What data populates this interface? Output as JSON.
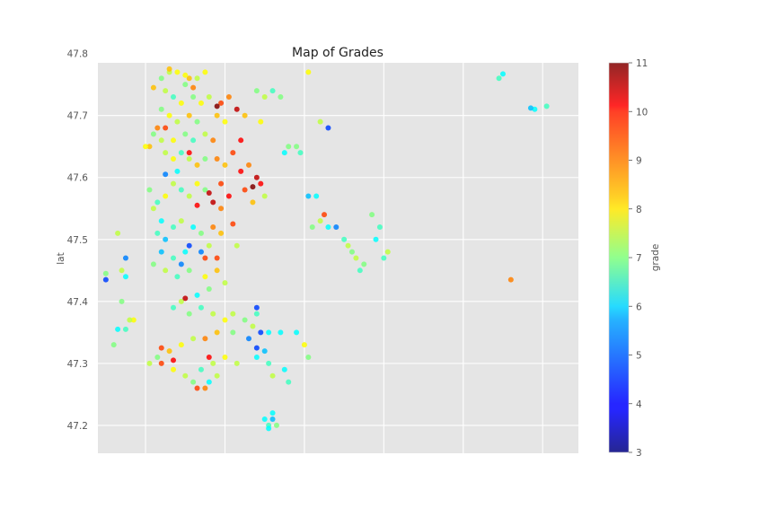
{
  "chart_data": {
    "type": "scatter",
    "title": "Map of Grades",
    "xlabel": "",
    "ylabel": "lat",
    "colorbar_label": "grade",
    "colormap": "jet",
    "xlim": [
      -122.52,
      -121.31
    ],
    "ylim": [
      47.155,
      47.785
    ],
    "yticks": [
      47.2,
      47.3,
      47.4,
      47.5,
      47.6,
      47.7,
      47.8
    ],
    "ytick_labels": [
      "47.2",
      "47.3",
      "47.4",
      "47.5",
      "47.6",
      "47.7",
      "47.8"
    ],
    "xticks_gridlines": [
      -122.4,
      -122.2,
      -122.0,
      -121.8,
      -121.6,
      -121.4
    ],
    "xtick_labels_visible": false,
    "clim": [
      3,
      11
    ],
    "colorbar_ticks": [
      3,
      4,
      5,
      6,
      7,
      8,
      9,
      10,
      11
    ],
    "colorbar_tick_labels": [
      "3",
      "4",
      "5",
      "6",
      "7",
      "8",
      "9",
      "10",
      "11"
    ],
    "grid": true,
    "background": "#e5e5e5",
    "point_alpha": 0.85,
    "series": [
      {
        "points": [
          [
            -122.34,
            47.77,
            7.5
          ],
          [
            -122.32,
            47.77,
            8.0
          ],
          [
            -122.36,
            47.76,
            7.0
          ],
          [
            -122.29,
            47.76,
            8.5
          ],
          [
            -122.3,
            47.75,
            7.0
          ],
          [
            -122.27,
            47.76,
            7.5
          ],
          [
            -122.25,
            47.77,
            8.0
          ],
          [
            -122.35,
            47.74,
            7.5
          ],
          [
            -122.33,
            47.73,
            6.5
          ],
          [
            -122.31,
            47.72,
            8.0
          ],
          [
            -122.28,
            47.73,
            7.0
          ],
          [
            -122.26,
            47.72,
            8.0
          ],
          [
            -122.24,
            47.73,
            7.5
          ],
          [
            -122.36,
            47.71,
            7.0
          ],
          [
            -122.34,
            47.7,
            8.0
          ],
          [
            -122.32,
            47.69,
            7.5
          ],
          [
            -122.29,
            47.7,
            8.5
          ],
          [
            -122.27,
            47.69,
            7.0
          ],
          [
            -122.37,
            47.68,
            9.0
          ],
          [
            -122.38,
            47.67,
            7.0
          ],
          [
            -122.39,
            47.65,
            8.5
          ],
          [
            -122.36,
            47.66,
            7.5
          ],
          [
            -122.33,
            47.66,
            8.0
          ],
          [
            -122.3,
            47.67,
            7.0
          ],
          [
            -122.28,
            47.66,
            6.5
          ],
          [
            -122.25,
            47.67,
            7.5
          ],
          [
            -122.23,
            47.66,
            9.0
          ],
          [
            -122.22,
            47.7,
            8.5
          ],
          [
            -122.21,
            47.72,
            9.5
          ],
          [
            -122.2,
            47.69,
            8.0
          ],
          [
            -122.19,
            47.73,
            9.0
          ],
          [
            -122.17,
            47.71,
            10.5
          ],
          [
            -122.15,
            47.7,
            8.5
          ],
          [
            -122.12,
            47.74,
            7.0
          ],
          [
            -122.1,
            47.73,
            7.5
          ],
          [
            -122.11,
            47.69,
            8.0
          ],
          [
            -122.35,
            47.64,
            7.5
          ],
          [
            -122.33,
            47.63,
            8.0
          ],
          [
            -122.31,
            47.64,
            6.5
          ],
          [
            -122.29,
            47.63,
            7.5
          ],
          [
            -122.27,
            47.62,
            8.5
          ],
          [
            -122.25,
            47.63,
            7.0
          ],
          [
            -122.22,
            47.63,
            9.0
          ],
          [
            -122.2,
            47.62,
            8.5
          ],
          [
            -122.18,
            47.64,
            9.5
          ],
          [
            -122.16,
            47.61,
            10.0
          ],
          [
            -122.14,
            47.62,
            9.0
          ],
          [
            -122.15,
            47.58,
            9.5
          ],
          [
            -122.12,
            47.6,
            10.5
          ],
          [
            -122.11,
            47.59,
            10.0
          ],
          [
            -122.13,
            47.56,
            8.5
          ],
          [
            -122.1,
            47.57,
            7.5
          ],
          [
            -122.21,
            47.59,
            9.5
          ],
          [
            -122.19,
            47.57,
            10.0
          ],
          [
            -122.23,
            47.56,
            10.5
          ],
          [
            -122.21,
            47.55,
            9.0
          ],
          [
            -122.25,
            47.58,
            7.0
          ],
          [
            -122.27,
            47.59,
            8.0
          ],
          [
            -122.29,
            47.57,
            7.5
          ],
          [
            -122.31,
            47.58,
            6.5
          ],
          [
            -122.33,
            47.59,
            7.5
          ],
          [
            -122.35,
            47.57,
            8.0
          ],
          [
            -122.37,
            47.56,
            6.5
          ],
          [
            -122.39,
            47.58,
            7.0
          ],
          [
            -122.38,
            47.55,
            7.5
          ],
          [
            -122.36,
            47.53,
            6.0
          ],
          [
            -122.37,
            47.51,
            6.5
          ],
          [
            -122.35,
            47.5,
            5.5
          ],
          [
            -122.33,
            47.52,
            6.5
          ],
          [
            -122.31,
            47.53,
            7.5
          ],
          [
            -122.28,
            47.52,
            6.0
          ],
          [
            -122.26,
            47.51,
            7.0
          ],
          [
            -122.23,
            47.52,
            9.0
          ],
          [
            -122.21,
            47.51,
            8.5
          ],
          [
            -122.24,
            47.49,
            7.5
          ],
          [
            -122.22,
            47.47,
            9.5
          ],
          [
            -122.26,
            47.48,
            5.0
          ],
          [
            -122.3,
            47.48,
            6.0
          ],
          [
            -122.33,
            47.47,
            6.5
          ],
          [
            -122.36,
            47.48,
            5.5
          ],
          [
            -122.38,
            47.46,
            7.0
          ],
          [
            -122.35,
            47.45,
            7.5
          ],
          [
            -122.32,
            47.44,
            6.5
          ],
          [
            -122.29,
            47.45,
            7.0
          ],
          [
            -122.25,
            47.44,
            8.0
          ],
          [
            -122.22,
            47.45,
            8.5
          ],
          [
            -122.2,
            47.43,
            7.5
          ],
          [
            -122.24,
            47.42,
            7.0
          ],
          [
            -122.27,
            47.41,
            6.0
          ],
          [
            -122.31,
            47.4,
            7.5
          ],
          [
            -122.33,
            47.39,
            6.5
          ],
          [
            -122.29,
            47.38,
            7.0
          ],
          [
            -122.26,
            47.39,
            6.5
          ],
          [
            -122.23,
            47.38,
            7.5
          ],
          [
            -122.2,
            47.37,
            8.0
          ],
          [
            -122.18,
            47.38,
            7.5
          ],
          [
            -122.15,
            47.37,
            7.0
          ],
          [
            -122.13,
            47.36,
            7.5
          ],
          [
            -122.12,
            47.38,
            6.5
          ],
          [
            -122.14,
            47.34,
            5.0
          ],
          [
            -122.18,
            47.35,
            7.0
          ],
          [
            -122.22,
            47.35,
            8.5
          ],
          [
            -122.25,
            47.34,
            9.0
          ],
          [
            -122.28,
            47.34,
            7.5
          ],
          [
            -122.31,
            47.33,
            8.0
          ],
          [
            -122.34,
            47.32,
            8.5
          ],
          [
            -122.37,
            47.31,
            7.0
          ],
          [
            -122.39,
            47.3,
            7.5
          ],
          [
            -122.36,
            47.3,
            9.5
          ],
          [
            -122.33,
            47.29,
            8.0
          ],
          [
            -122.3,
            47.28,
            7.5
          ],
          [
            -122.28,
            47.27,
            7.0
          ],
          [
            -122.26,
            47.29,
            6.5
          ],
          [
            -122.23,
            47.3,
            7.5
          ],
          [
            -122.2,
            47.31,
            8.0
          ],
          [
            -122.17,
            47.3,
            7.5
          ],
          [
            -122.24,
            47.27,
            6.0
          ],
          [
            -122.25,
            47.26,
            9.0
          ],
          [
            -122.22,
            47.28,
            7.5
          ],
          [
            -122.12,
            47.31,
            6.0
          ],
          [
            -122.09,
            47.35,
            6.0
          ],
          [
            -122.1,
            47.32,
            5.5
          ],
          [
            -122.05,
            47.29,
            6.0
          ],
          [
            -122.04,
            47.27,
            6.5
          ],
          [
            -122.0,
            47.33,
            8.0
          ],
          [
            -122.02,
            47.35,
            6.0
          ],
          [
            -121.99,
            47.31,
            7.0
          ],
          [
            -122.08,
            47.28,
            7.5
          ],
          [
            -122.06,
            47.35,
            6.0
          ],
          [
            -122.11,
            47.35,
            4.5
          ],
          [
            -122.09,
            47.3,
            6.5
          ],
          [
            -122.1,
            47.21,
            6.0
          ],
          [
            -122.09,
            47.2,
            6.5
          ],
          [
            -122.08,
            47.21,
            5.5
          ],
          [
            -122.09,
            47.195,
            6.0
          ],
          [
            -122.07,
            47.2,
            7.0
          ],
          [
            -122.08,
            47.22,
            6.0
          ],
          [
            -121.98,
            47.52,
            7.0
          ],
          [
            -121.96,
            47.53,
            7.5
          ],
          [
            -121.94,
            47.52,
            6.0
          ],
          [
            -121.92,
            47.52,
            5.0
          ],
          [
            -121.9,
            47.5,
            6.5
          ],
          [
            -121.89,
            47.49,
            7.5
          ],
          [
            -121.88,
            47.48,
            7.0
          ],
          [
            -121.87,
            47.47,
            7.5
          ],
          [
            -121.86,
            47.45,
            6.5
          ],
          [
            -121.85,
            47.46,
            7.0
          ],
          [
            -121.95,
            47.54,
            9.5
          ],
          [
            -121.97,
            47.57,
            6.0
          ],
          [
            -121.99,
            47.57,
            5.5
          ],
          [
            -122.02,
            47.65,
            7.0
          ],
          [
            -122.01,
            47.64,
            6.5
          ],
          [
            -121.96,
            47.69,
            7.5
          ],
          [
            -121.94,
            47.68,
            4.5
          ],
          [
            -121.99,
            47.77,
            8.0
          ],
          [
            -122.08,
            47.74,
            6.5
          ],
          [
            -122.06,
            47.73,
            7.0
          ],
          [
            -122.05,
            47.64,
            6.0
          ],
          [
            -122.04,
            47.65,
            7.0
          ],
          [
            -121.83,
            47.54,
            7.0
          ],
          [
            -121.81,
            47.52,
            6.5
          ],
          [
            -121.79,
            47.48,
            7.5
          ],
          [
            -121.8,
            47.47,
            6.5
          ],
          [
            -121.82,
            47.5,
            6.0
          ],
          [
            -121.5,
            47.767,
            6.0
          ],
          [
            -121.51,
            47.76,
            6.5
          ],
          [
            -121.42,
            47.71,
            6.0
          ],
          [
            -121.43,
            47.712,
            5.5
          ],
          [
            -121.39,
            47.715,
            6.5
          ],
          [
            -121.48,
            47.435,
            9.0
          ],
          [
            -122.5,
            47.445,
            7.0
          ],
          [
            -122.5,
            47.435,
            4.5
          ],
          [
            -122.46,
            47.45,
            7.5
          ],
          [
            -122.45,
            47.47,
            5.0
          ],
          [
            -122.45,
            47.44,
            6.0
          ],
          [
            -122.47,
            47.51,
            7.5
          ],
          [
            -122.46,
            47.4,
            7.0
          ],
          [
            -122.43,
            47.37,
            8.0
          ],
          [
            -122.45,
            47.355,
            6.5
          ],
          [
            -122.47,
            47.355,
            6.0
          ],
          [
            -122.44,
            47.37,
            7.5
          ],
          [
            -122.48,
            47.33,
            7.0
          ],
          [
            -122.34,
            47.775,
            8.5
          ],
          [
            -122.3,
            47.765,
            8.0
          ],
          [
            -122.38,
            47.745,
            8.5
          ],
          [
            -122.28,
            47.745,
            9.0
          ],
          [
            -122.22,
            47.715,
            11.0
          ],
          [
            -122.29,
            47.64,
            10.0
          ],
          [
            -122.32,
            47.61,
            6.0
          ],
          [
            -122.35,
            47.605,
            5.0
          ],
          [
            -122.24,
            47.575,
            10.5
          ],
          [
            -122.27,
            47.555,
            10.0
          ],
          [
            -122.29,
            47.49,
            4.5
          ],
          [
            -122.31,
            47.46,
            5.0
          ],
          [
            -122.18,
            47.525,
            9.5
          ],
          [
            -122.17,
            47.49,
            7.5
          ],
          [
            -122.25,
            47.47,
            9.5
          ],
          [
            -122.12,
            47.39,
            4.5
          ],
          [
            -122.12,
            47.325,
            4.5
          ],
          [
            -122.3,
            47.405,
            10.5
          ],
          [
            -122.24,
            47.31,
            10.0
          ],
          [
            -122.27,
            47.26,
            9.5
          ],
          [
            -122.36,
            47.325,
            9.5
          ],
          [
            -122.33,
            47.305,
            10.0
          ],
          [
            -122.4,
            47.65,
            8.0
          ],
          [
            -122.35,
            47.68,
            9.5
          ],
          [
            -122.16,
            47.66,
            10.0
          ],
          [
            -122.13,
            47.585,
            11.0
          ]
        ]
      }
    ]
  }
}
